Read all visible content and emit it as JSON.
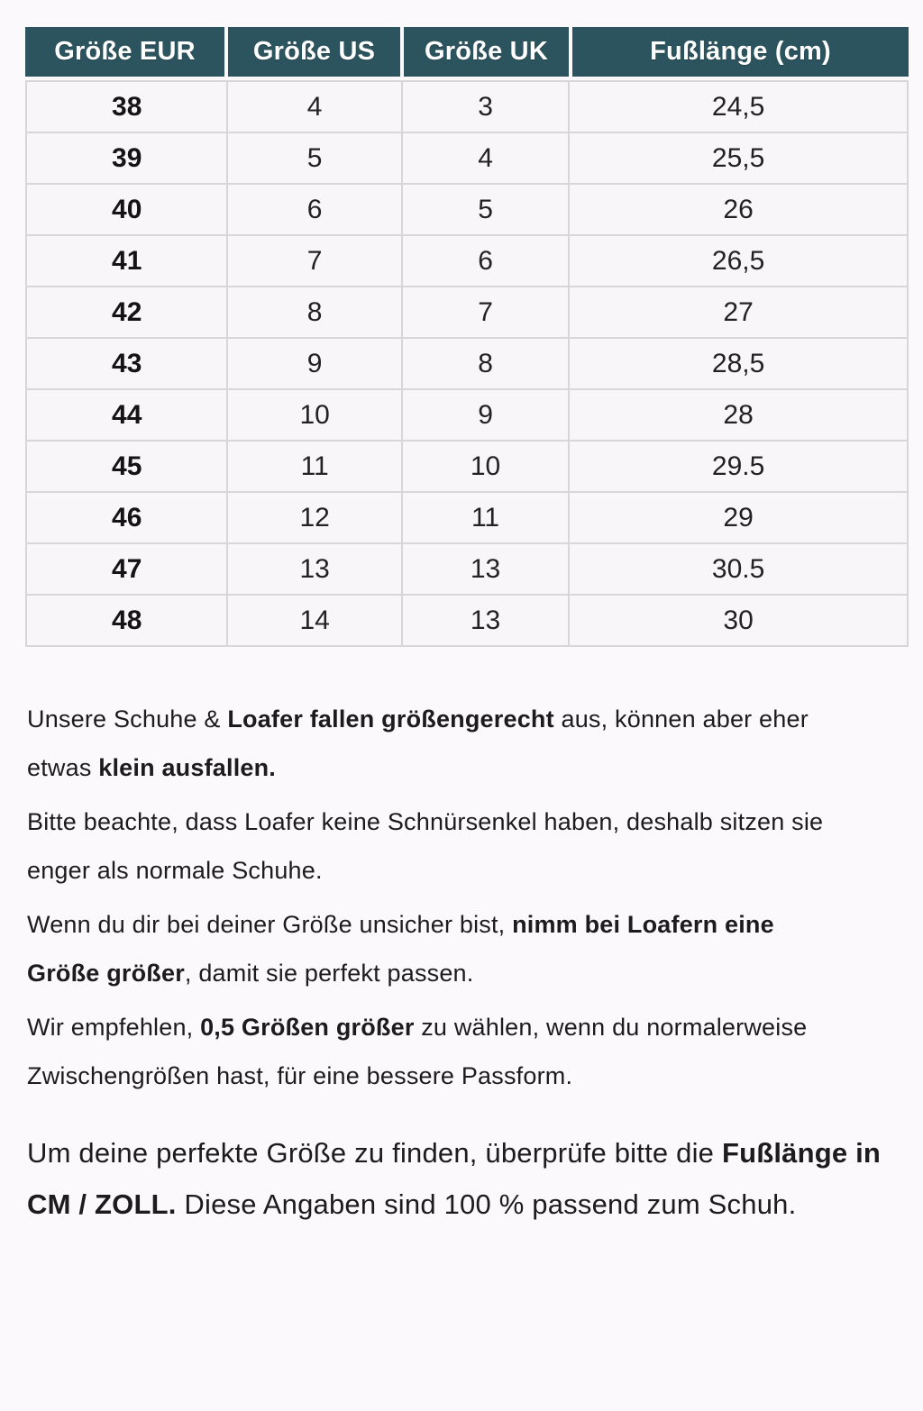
{
  "table": {
    "headers": [
      "Größe EUR",
      "Größe US",
      "Größe UK",
      "Fußlänge (cm)"
    ],
    "rows": [
      [
        "38",
        "4",
        "3",
        "24,5"
      ],
      [
        "39",
        "5",
        "4",
        "25,5"
      ],
      [
        "40",
        "6",
        "5",
        "26"
      ],
      [
        "41",
        "7",
        "6",
        "26,5"
      ],
      [
        "42",
        "8",
        "7",
        "27"
      ],
      [
        "43",
        "9",
        "8",
        "28,5"
      ],
      [
        "44",
        "10",
        "9",
        "28"
      ],
      [
        "45",
        "11",
        "10",
        "29.5"
      ],
      [
        "46",
        "12",
        "11",
        "29"
      ],
      [
        "47",
        "13",
        "13",
        "30.5"
      ],
      [
        "48",
        "14",
        "13",
        "30"
      ]
    ]
  },
  "paragraphs": [
    {
      "size": "normal",
      "segments": [
        {
          "text": "Unsere Schuhe & ",
          "bold": false
        },
        {
          "text": "Loafer fallen größengerecht",
          "bold": true
        },
        {
          "text": " aus, können aber eher etwas ",
          "bold": false
        },
        {
          "text": "klein ausfallen.",
          "bold": true
        }
      ]
    },
    {
      "size": "normal",
      "segments": [
        {
          "text": "Bitte beachte, dass Loafer keine Schnürsenkel haben, deshalb sitzen sie enger als normale Schuhe.",
          "bold": false
        }
      ]
    },
    {
      "size": "normal",
      "segments": [
        {
          "text": "Wenn du dir bei deiner Größe unsicher bist, ",
          "bold": false
        },
        {
          "text": "nimm bei Loafern eine Größe größer",
          "bold": true
        },
        {
          "text": ", damit sie perfekt passen.",
          "bold": false
        }
      ]
    },
    {
      "size": "normal",
      "segments": [
        {
          "text": "Wir empfehlen, ",
          "bold": false
        },
        {
          "text": "0,5 Größen größer",
          "bold": true
        },
        {
          "text": " zu wählen, wenn du normalerweise Zwischengrößen hast, für eine bessere Passform.",
          "bold": false
        }
      ]
    },
    {
      "size": "large",
      "segments": [
        {
          "text": "Um deine perfekte Größe zu finden, überprüfe bitte die ",
          "bold": false
        },
        {
          "text": "Fußlänge in CM / ZOLL.",
          "bold": true
        },
        {
          "text": " Diese Angaben sind 100 % passend zum Schuh.",
          "bold": false
        }
      ]
    }
  ],
  "colors": {
    "header_bg": "#2c545f",
    "header_text": "#ffffff",
    "page_bg": "#fbf9fb",
    "cell_bg": "#f9f6f9",
    "border": "#d9d6da",
    "text": "#1c1c1e"
  }
}
